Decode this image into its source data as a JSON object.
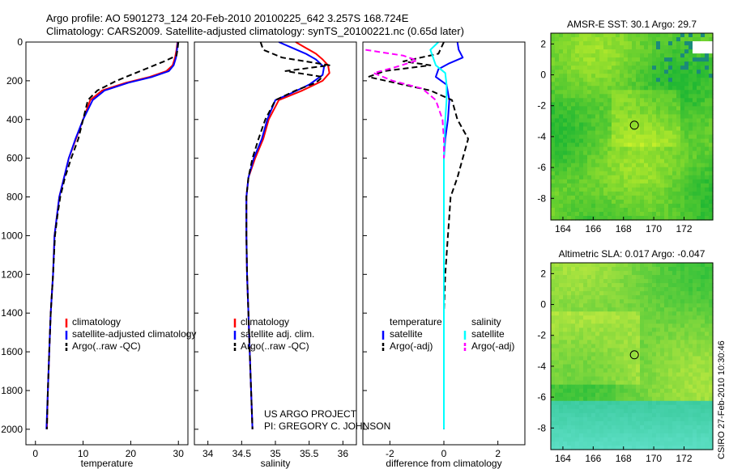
{
  "header": {
    "line1": "Argo profile: AO 5901273_124 20-Feb-2010 20100225_642 3.257S 168.724E",
    "line2": "Climatology: CARS2009. Satellite-adjusted climatology: synTS_20100221.nc (0.65d later)"
  },
  "credit": {
    "project": "US ARGO PROJECT",
    "pi": "PI: GREGORY C. JOHNSON",
    "stamp": "CSIRO 27-Feb-2010 10:30:46"
  },
  "colors": {
    "climatology": "#ff0000",
    "satellite": "#0000ff",
    "argo": "#000000",
    "salinity_satellite": "#00ffff",
    "salinity_argo": "#ff00ff"
  },
  "chart_data": [
    {
      "type": "line",
      "name": "temperature-profile",
      "xlabel": "temperature",
      "ylabel": "",
      "xlim": [
        -2,
        32
      ],
      "ylim": [
        2080,
        0
      ],
      "xticks": [
        0,
        10,
        20,
        30
      ],
      "yticks": [
        0,
        200,
        400,
        600,
        800,
        1000,
        1200,
        1400,
        1600,
        1800,
        2000
      ],
      "legend": {
        "position": "lower-right",
        "entries": [
          {
            "label": "climatology",
            "color": "#ff0000",
            "style": "solid"
          },
          {
            "label": "satellite-adjusted climatology",
            "color": "#0000ff",
            "style": "solid"
          },
          {
            "label": "Argo(..raw -QC)",
            "color": "#000000",
            "style": "dashed"
          }
        ]
      },
      "series": [
        {
          "name": "climatology",
          "color": "#ff0000",
          "dash": false,
          "points": [
            [
              29.8,
              0
            ],
            [
              29.6,
              40
            ],
            [
              29.3,
              80
            ],
            [
              28.8,
              120
            ],
            [
              27.5,
              150
            ],
            [
              24,
              180
            ],
            [
              19,
              210
            ],
            [
              14,
              250
            ],
            [
              11.5,
              300
            ],
            [
              10,
              400
            ],
            [
              8.5,
              500
            ],
            [
              7,
              600
            ],
            [
              6,
              700
            ],
            [
              5,
              800
            ],
            [
              4.5,
              900
            ],
            [
              4,
              1000
            ],
            [
              3.7,
              1200
            ],
            [
              3.2,
              1400
            ],
            [
              2.9,
              1600
            ],
            [
              2.6,
              1800
            ],
            [
              2.4,
              2000
            ]
          ]
        },
        {
          "name": "satellite",
          "color": "#0000ff",
          "dash": false,
          "points": [
            [
              29.9,
              0
            ],
            [
              29.7,
              40
            ],
            [
              29.5,
              80
            ],
            [
              29,
              120
            ],
            [
              28,
              150
            ],
            [
              24.5,
              180
            ],
            [
              19.5,
              210
            ],
            [
              14.5,
              250
            ],
            [
              12,
              300
            ],
            [
              10,
              400
            ],
            [
              8.4,
              500
            ],
            [
              7,
              600
            ],
            [
              6,
              700
            ],
            [
              5,
              800
            ],
            [
              4.5,
              900
            ],
            [
              4,
              1000
            ],
            [
              3.7,
              1200
            ],
            [
              3.2,
              1400
            ],
            [
              2.9,
              1600
            ],
            [
              2.6,
              1800
            ],
            [
              2.3,
              2000
            ]
          ]
        },
        {
          "name": "argo",
          "color": "#000000",
          "dash": true,
          "points": [
            [
              30,
              0
            ],
            [
              29.8,
              40
            ],
            [
              29.6,
              70
            ],
            [
              27,
              100
            ],
            [
              25,
              120
            ],
            [
              23,
              140
            ],
            [
              20,
              170
            ],
            [
              17,
              200
            ],
            [
              13,
              250
            ],
            [
              11,
              300
            ],
            [
              10,
              400
            ],
            [
              9,
              500
            ],
            [
              7.5,
              600
            ],
            [
              6.2,
              700
            ],
            [
              5.2,
              800
            ],
            [
              4.6,
              900
            ],
            [
              4.1,
              1000
            ],
            [
              3.7,
              1200
            ],
            [
              3.2,
              1400
            ],
            [
              2.9,
              1600
            ],
            [
              2.6,
              1800
            ],
            [
              2.4,
              2000
            ]
          ]
        }
      ]
    },
    {
      "type": "line",
      "name": "salinity-profile",
      "xlabel": "salinity",
      "ylabel": "",
      "xlim": [
        33.8,
        36.2
      ],
      "ylim": [
        2080,
        0
      ],
      "xticks": [
        34,
        34.5,
        35,
        35.5,
        36
      ],
      "xtick_labels": [
        "34",
        "34.5",
        "35",
        "35.5",
        "36"
      ],
      "legend": {
        "position": "lower-right",
        "entries": [
          {
            "label": "climatology",
            "color": "#ff0000",
            "style": "solid"
          },
          {
            "label": "satellite adj. clim.",
            "color": "#0000ff",
            "style": "solid"
          },
          {
            "label": "Argo(..raw -QC)",
            "color": "#000000",
            "style": "dashed"
          }
        ]
      },
      "series": [
        {
          "name": "climatology",
          "color": "#ff0000",
          "dash": false,
          "points": [
            [
              35.3,
              0
            ],
            [
              35.45,
              30
            ],
            [
              35.6,
              60
            ],
            [
              35.7,
              90
            ],
            [
              35.78,
              120
            ],
            [
              35.8,
              160
            ],
            [
              35.7,
              200
            ],
            [
              35.4,
              250
            ],
            [
              35.05,
              300
            ],
            [
              34.9,
              400
            ],
            [
              34.82,
              500
            ],
            [
              34.7,
              600
            ],
            [
              34.6,
              700
            ],
            [
              34.57,
              800
            ],
            [
              34.57,
              1000
            ],
            [
              34.58,
              1200
            ],
            [
              34.6,
              1400
            ],
            [
              34.62,
              1600
            ],
            [
              34.64,
              1800
            ],
            [
              34.66,
              2000
            ]
          ]
        },
        {
          "name": "satellite",
          "color": "#0000ff",
          "dash": false,
          "points": [
            [
              35.05,
              0
            ],
            [
              35.25,
              30
            ],
            [
              35.45,
              60
            ],
            [
              35.6,
              90
            ],
            [
              35.72,
              130
            ],
            [
              35.7,
              170
            ],
            [
              35.5,
              220
            ],
            [
              35.2,
              270
            ],
            [
              35.0,
              300
            ],
            [
              34.88,
              400
            ],
            [
              34.8,
              500
            ],
            [
              34.68,
              600
            ],
            [
              34.6,
              700
            ],
            [
              34.57,
              800
            ],
            [
              34.57,
              1000
            ],
            [
              34.58,
              1200
            ],
            [
              34.6,
              1400
            ],
            [
              34.62,
              1600
            ],
            [
              34.64,
              1800
            ],
            [
              34.66,
              2000
            ]
          ]
        },
        {
          "name": "argo",
          "color": "#000000",
          "dash": true,
          "points": [
            [
              34.78,
              0
            ],
            [
              34.82,
              40
            ],
            [
              35.1,
              80
            ],
            [
              35.8,
              120
            ],
            [
              35.15,
              150
            ],
            [
              35.7,
              180
            ],
            [
              35.6,
              210
            ],
            [
              35.3,
              250
            ],
            [
              35.0,
              300
            ],
            [
              34.85,
              400
            ],
            [
              34.75,
              500
            ],
            [
              34.66,
              600
            ],
            [
              34.6,
              700
            ],
            [
              34.57,
              800
            ],
            [
              34.57,
              1000
            ],
            [
              34.58,
              1200
            ],
            [
              34.6,
              1400
            ],
            [
              34.62,
              1600
            ],
            [
              34.64,
              1800
            ],
            [
              34.66,
              2000
            ]
          ]
        }
      ]
    },
    {
      "type": "line",
      "name": "difference-profile",
      "xlabel": "difference from climatology",
      "ylabel": "",
      "xlim": [
        -3,
        3
      ],
      "ylim": [
        2080,
        0
      ],
      "xticks": [
        -2,
        0,
        2
      ],
      "legend": {
        "position": "lower-right",
        "columns": [
          {
            "title": "temperature",
            "entries": [
              {
                "label": "satellite",
                "color": "#0000ff",
                "style": "solid"
              },
              {
                "label": "Argo(-adj)",
                "color": "#000000",
                "style": "dashed"
              }
            ]
          },
          {
            "title": "salinity",
            "entries": [
              {
                "label": "satellite",
                "color": "#00ffff",
                "style": "solid"
              },
              {
                "label": "Argo(-adj)",
                "color": "#ff00ff",
                "style": "dashed"
              }
            ]
          }
        ]
      },
      "series": [
        {
          "name": "temp-satellite",
          "color": "#0000ff",
          "dash": false,
          "points": [
            [
              0.5,
              0
            ],
            [
              0.55,
              40
            ],
            [
              0.7,
              80
            ],
            [
              0.2,
              110
            ],
            [
              -0.2,
              140
            ],
            [
              -0.3,
              180
            ],
            [
              0.1,
              220
            ],
            [
              0.2,
              300
            ],
            [
              0.15,
              400
            ],
            [
              0.05,
              500
            ],
            [
              0,
              600
            ],
            [
              0,
              800
            ],
            [
              0,
              1000
            ],
            [
              0,
              1200
            ],
            [
              0,
              1400
            ],
            [
              0,
              1600
            ],
            [
              0,
              1800
            ],
            [
              0,
              2000
            ]
          ]
        },
        {
          "name": "temp-argo",
          "color": "#000000",
          "dash": true,
          "points": [
            [
              0,
              0
            ],
            [
              -0.2,
              60
            ],
            [
              -1.5,
              100
            ],
            [
              -0.5,
              120
            ],
            [
              -2.2,
              150
            ],
            [
              -2.8,
              180
            ],
            [
              -1.5,
              220
            ],
            [
              -0.5,
              250
            ],
            [
              0.3,
              300
            ],
            [
              0.5,
              400
            ],
            [
              0.9,
              500
            ],
            [
              0.7,
              600
            ],
            [
              0.5,
              700
            ],
            [
              0.25,
              800
            ],
            [
              0.2,
              900
            ],
            [
              0.15,
              1000
            ],
            [
              0.05,
              1200
            ],
            [
              0,
              1400
            ],
            [
              0,
              1600
            ],
            [
              0,
              1800
            ],
            [
              0,
              2000
            ]
          ]
        },
        {
          "name": "sal-satellite",
          "color": "#00ffff",
          "dash": false,
          "points": [
            [
              -0.2,
              0
            ],
            [
              -0.5,
              40
            ],
            [
              -0.4,
              80
            ],
            [
              -0.3,
              120
            ],
            [
              0.05,
              160
            ],
            [
              0.1,
              220
            ],
            [
              0.1,
              300
            ],
            [
              0.05,
              400
            ],
            [
              0,
              600
            ],
            [
              0,
              800
            ],
            [
              0,
              1000
            ],
            [
              0,
              1200
            ],
            [
              0,
              1400
            ],
            [
              0,
              1600
            ],
            [
              0,
              1800
            ],
            [
              0,
              2000
            ]
          ]
        },
        {
          "name": "sal-argo",
          "color": "#ff00ff",
          "dash": true,
          "points": [
            [
              -2.9,
              40
            ],
            [
              -1.5,
              70
            ],
            [
              -1,
              95
            ],
            [
              -1.8,
              130
            ],
            [
              -2.6,
              160
            ],
            [
              -1.9,
              200
            ],
            [
              -0.8,
              240
            ],
            [
              -0.3,
              300
            ],
            [
              -0.05,
              400
            ],
            [
              0,
              500
            ],
            [
              0,
              600
            ]
          ]
        }
      ]
    },
    {
      "type": "heatmap",
      "name": "sst-map",
      "title": "AMSR-E SST: 30.1 Argo: 29.7",
      "xlim": [
        163.2,
        173.9
      ],
      "ylim": [
        -9.4,
        2.7
      ],
      "xticks": [
        164,
        166,
        168,
        170,
        172
      ],
      "yticks": [
        2,
        0,
        -2,
        -4,
        -6,
        -8
      ],
      "marker": {
        "lon": 168.72,
        "lat": -3.26
      }
    },
    {
      "type": "heatmap",
      "name": "sla-map",
      "title": "Altimetric SLA: 0.017 Argo: -0.047",
      "xlim": [
        163.2,
        173.9
      ],
      "ylim": [
        -9.4,
        2.7
      ],
      "xticks": [
        164,
        166,
        168,
        170,
        172
      ],
      "yticks": [
        2,
        0,
        -2,
        -4,
        -6,
        -8
      ],
      "marker": {
        "lon": 168.72,
        "lat": -3.26
      }
    }
  ]
}
